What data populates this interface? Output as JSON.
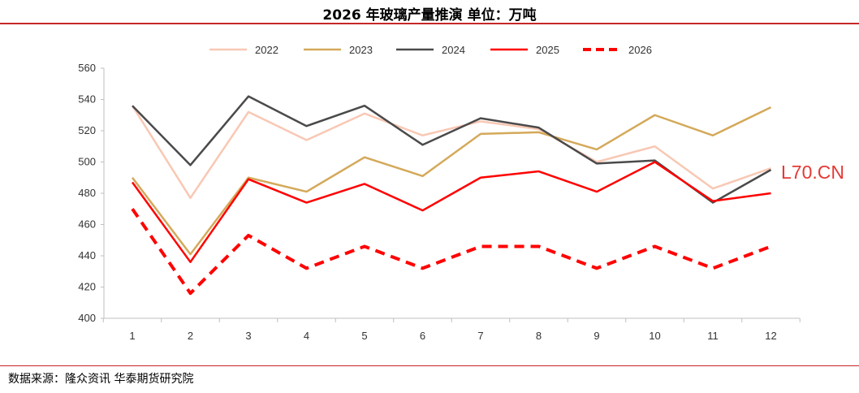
{
  "header": {
    "title": "2026 年玻璃产量推演    单位：万吨"
  },
  "footer": {
    "source": "数据来源：隆众资讯  华泰期货研究院"
  },
  "watermark": "L70.CN",
  "chart_data": {
    "type": "line",
    "x": [
      1,
      2,
      3,
      4,
      5,
      6,
      7,
      8,
      9,
      10,
      11,
      12
    ],
    "ylim": [
      400,
      560
    ],
    "yticks": [
      400,
      420,
      440,
      460,
      480,
      500,
      520,
      540,
      560
    ],
    "grid": false,
    "legend": "top",
    "series": [
      {
        "name": "2022",
        "color": "#f8c8b4",
        "dash": false,
        "values": [
          536,
          477,
          532,
          514,
          531,
          517,
          526,
          521,
          500,
          510,
          483,
          496
        ]
      },
      {
        "name": "2023",
        "color": "#d4a95a",
        "dash": false,
        "values": [
          490,
          441,
          490,
          481,
          503,
          491,
          518,
          519,
          508,
          530,
          517,
          535
        ]
      },
      {
        "name": "2024",
        "color": "#4a4a4a",
        "dash": false,
        "values": [
          536,
          498,
          542,
          523,
          536,
          511,
          528,
          522,
          499,
          501,
          474,
          495
        ]
      },
      {
        "name": "2025",
        "color": "#ff0000",
        "dash": false,
        "values": [
          487,
          436,
          489,
          474,
          486,
          469,
          490,
          494,
          481,
          500,
          475,
          480
        ]
      },
      {
        "name": "2026",
        "color": "#ff0000",
        "dash": true,
        "values": [
          470,
          416,
          453,
          432,
          446,
          432,
          446,
          446,
          432,
          446,
          432,
          446
        ]
      }
    ]
  }
}
